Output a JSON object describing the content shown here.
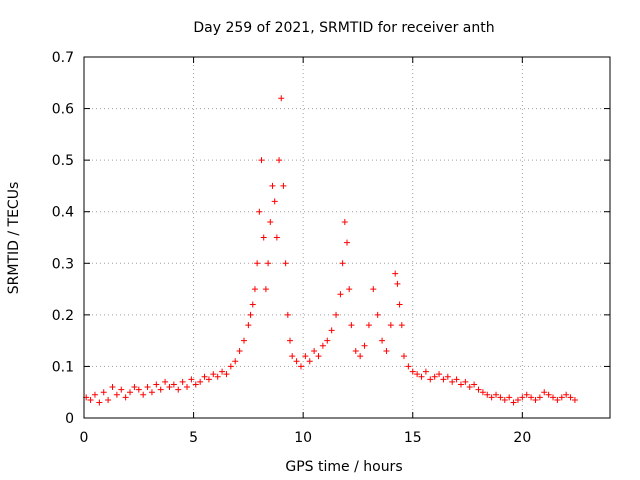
{
  "chart_data": {
    "type": "scatter",
    "title": "Day 259 of 2021, SRMTID for receiver anth",
    "xlabel": "GPS time / hours",
    "ylabel": "SRMTID / TECUs",
    "xlim": [
      0,
      24
    ],
    "ylim": [
      0,
      0.7
    ],
    "xticks": [
      0,
      5,
      10,
      15,
      20
    ],
    "xtick_labels": [
      "0",
      "5",
      "10",
      "15",
      "20"
    ],
    "yticks": [
      0,
      0.1,
      0.2,
      0.3,
      0.4,
      0.5,
      0.6,
      0.7
    ],
    "ytick_labels": [
      "0",
      "0.1",
      "0.2",
      "0.3",
      "0.4",
      "0.5",
      "0.6",
      "0.7"
    ],
    "grid": true,
    "marker": "+",
    "color": "#ff0000",
    "series": [
      {
        "name": "SRMTID",
        "x": [
          0.1,
          0.3,
          0.5,
          0.7,
          0.9,
          1.1,
          1.3,
          1.5,
          1.7,
          1.9,
          2.1,
          2.3,
          2.5,
          2.7,
          2.9,
          3.1,
          3.3,
          3.5,
          3.7,
          3.9,
          4.1,
          4.3,
          4.5,
          4.7,
          4.9,
          5.1,
          5.3,
          5.5,
          5.7,
          5.9,
          6.1,
          6.3,
          6.5,
          6.7,
          6.9,
          7.1,
          7.3,
          7.5,
          7.6,
          7.7,
          7.8,
          7.9,
          8.0,
          8.1,
          8.2,
          8.3,
          8.4,
          8.5,
          8.6,
          8.7,
          8.8,
          8.9,
          9.0,
          9.1,
          9.2,
          9.3,
          9.4,
          9.5,
          9.7,
          9.9,
          10.1,
          10.3,
          10.5,
          10.7,
          10.9,
          11.1,
          11.3,
          11.5,
          11.7,
          11.8,
          11.9,
          12.0,
          12.1,
          12.2,
          12.4,
          12.6,
          12.8,
          13.0,
          13.2,
          13.4,
          13.6,
          13.8,
          14.0,
          14.2,
          14.3,
          14.4,
          14.5,
          14.6,
          14.8,
          15.0,
          15.2,
          15.4,
          15.6,
          15.8,
          16.0,
          16.2,
          16.4,
          16.6,
          16.8,
          17.0,
          17.2,
          17.4,
          17.6,
          17.8,
          18.0,
          18.2,
          18.4,
          18.6,
          18.8,
          19.0,
          19.2,
          19.4,
          19.6,
          19.8,
          20.0,
          20.2,
          20.4,
          20.6,
          20.8,
          21.0,
          21.2,
          21.4,
          21.6,
          21.8,
          22.0,
          22.2,
          22.4
        ],
        "y": [
          0.04,
          0.035,
          0.045,
          0.03,
          0.05,
          0.035,
          0.06,
          0.045,
          0.055,
          0.04,
          0.05,
          0.06,
          0.055,
          0.045,
          0.06,
          0.05,
          0.065,
          0.055,
          0.07,
          0.06,
          0.065,
          0.055,
          0.07,
          0.06,
          0.075,
          0.065,
          0.07,
          0.08,
          0.075,
          0.085,
          0.08,
          0.09,
          0.085,
          0.1,
          0.11,
          0.13,
          0.15,
          0.18,
          0.2,
          0.22,
          0.25,
          0.3,
          0.4,
          0.5,
          0.35,
          0.25,
          0.3,
          0.38,
          0.45,
          0.42,
          0.35,
          0.5,
          0.62,
          0.45,
          0.3,
          0.2,
          0.15,
          0.12,
          0.11,
          0.1,
          0.12,
          0.11,
          0.13,
          0.12,
          0.14,
          0.15,
          0.17,
          0.2,
          0.24,
          0.3,
          0.38,
          0.34,
          0.25,
          0.18,
          0.13,
          0.12,
          0.14,
          0.18,
          0.25,
          0.2,
          0.15,
          0.13,
          0.18,
          0.28,
          0.26,
          0.22,
          0.18,
          0.12,
          0.1,
          0.09,
          0.085,
          0.08,
          0.09,
          0.075,
          0.08,
          0.085,
          0.075,
          0.08,
          0.07,
          0.075,
          0.065,
          0.07,
          0.06,
          0.065,
          0.055,
          0.05,
          0.045,
          0.04,
          0.045,
          0.04,
          0.035,
          0.04,
          0.03,
          0.035,
          0.04,
          0.045,
          0.04,
          0.035,
          0.04,
          0.05,
          0.045,
          0.04,
          0.035,
          0.04,
          0.045,
          0.04,
          0.035
        ]
      }
    ]
  }
}
